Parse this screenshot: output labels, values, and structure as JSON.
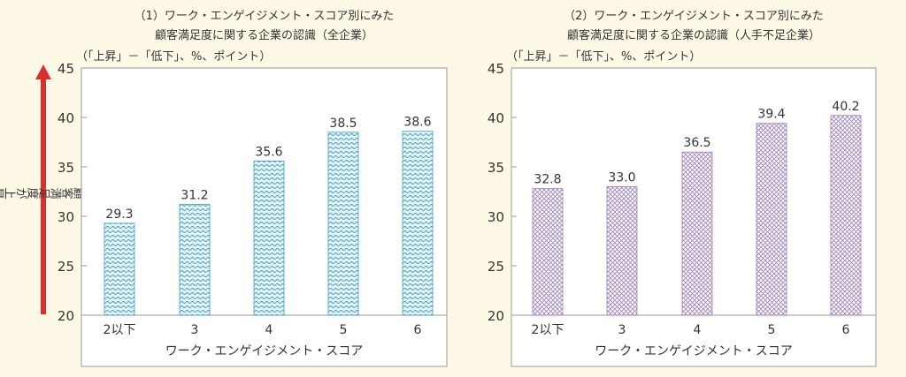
{
  "colors": {
    "background": "#fdf9e6",
    "arrow": "#d8302e",
    "chart1_bar": "#3c9cb8",
    "chart2_bar": "#9b7fb8"
  },
  "y_axis_label": "（顧客満足度が上昇している）",
  "chart_data": [
    {
      "type": "bar",
      "title_line1": "（1）ワーク・エンゲイジメント・スコア別にみた",
      "title_line2": "顧客満足度に関する企業の認識（全企業）",
      "unit_label": "（「上昇」－「低下」、%、ポイント）",
      "xlabel": "ワーク・エンゲイジメント・スコア",
      "categories": [
        "2以下",
        "3",
        "4",
        "5",
        "6"
      ],
      "values": [
        29.3,
        31.2,
        35.6,
        38.5,
        38.6
      ],
      "value_labels": [
        "29.3",
        "31.2",
        "35.6",
        "38.5",
        "38.6"
      ],
      "ylim": [
        20,
        45
      ],
      "yticks": [
        "20",
        "25",
        "30",
        "35",
        "40",
        "45"
      ],
      "grid": false
    },
    {
      "type": "bar",
      "title_line1": "（2）ワーク・エンゲイジメント・スコア別にみた",
      "title_line2": "顧客満足度に関する企業の認識（人手不足企業）",
      "unit_label": "（「上昇」－「低下」、%、ポイント）",
      "xlabel": "ワーク・エンゲイジメント・スコア",
      "categories": [
        "2以下",
        "3",
        "4",
        "5",
        "6"
      ],
      "values": [
        32.8,
        33.0,
        36.5,
        39.4,
        40.2
      ],
      "value_labels": [
        "32.8",
        "33.0",
        "36.5",
        "39.4",
        "40.2"
      ],
      "ylim": [
        20,
        45
      ],
      "yticks": [
        "20",
        "25",
        "30",
        "35",
        "40",
        "45"
      ],
      "grid": false
    }
  ]
}
